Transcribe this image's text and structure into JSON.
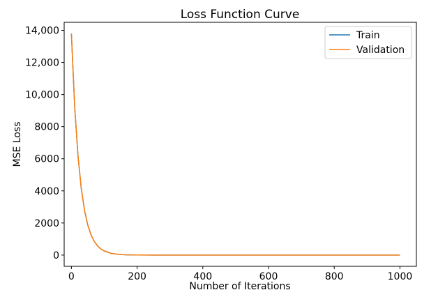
{
  "chart_data": {
    "type": "line",
    "title": "Loss Function Curve",
    "xlabel": "Number of Iterations",
    "ylabel": "MSE Loss",
    "xlim": [
      -22,
      1050
    ],
    "ylim": [
      -700,
      14500
    ],
    "xticks": [
      0,
      200,
      400,
      600,
      800,
      1000
    ],
    "xtick_labels": [
      "0",
      "200",
      "400",
      "600",
      "800",
      "1000"
    ],
    "yticks": [
      0,
      2000,
      4000,
      6000,
      8000,
      10000,
      12000,
      14000
    ],
    "ytick_labels": [
      "0",
      "2000",
      "4000",
      "6000",
      "8000",
      "10,000",
      "12,000",
      "14,000"
    ],
    "grid": false,
    "legend_position": "top-right",
    "series": [
      {
        "name": "Train",
        "color": "#1f77b4",
        "x": [
          0,
          10,
          20,
          30,
          40,
          50,
          60,
          70,
          80,
          90,
          100,
          120,
          140,
          160,
          180,
          200,
          250,
          300,
          400,
          500,
          600,
          700,
          800,
          900,
          1000
        ],
        "y": [
          13800,
          9250,
          6200,
          4150,
          2780,
          1860,
          1250,
          840,
          560,
          380,
          255,
          115,
          52,
          24,
          11,
          5,
          1,
          0.5,
          0.3,
          0.3,
          0.3,
          0.3,
          0.3,
          0.3,
          0.3
        ]
      },
      {
        "name": "Validation",
        "color": "#ff7f0e",
        "x": [
          0,
          10,
          20,
          30,
          40,
          50,
          60,
          70,
          80,
          90,
          100,
          120,
          140,
          160,
          180,
          200,
          250,
          300,
          400,
          500,
          600,
          700,
          800,
          900,
          1000
        ],
        "y": [
          13800,
          9250,
          6200,
          4150,
          2780,
          1860,
          1250,
          840,
          560,
          380,
          255,
          115,
          52,
          24,
          11,
          5,
          1,
          0.5,
          0.3,
          0.3,
          0.3,
          0.3,
          0.3,
          0.3,
          0.3
        ]
      }
    ]
  }
}
